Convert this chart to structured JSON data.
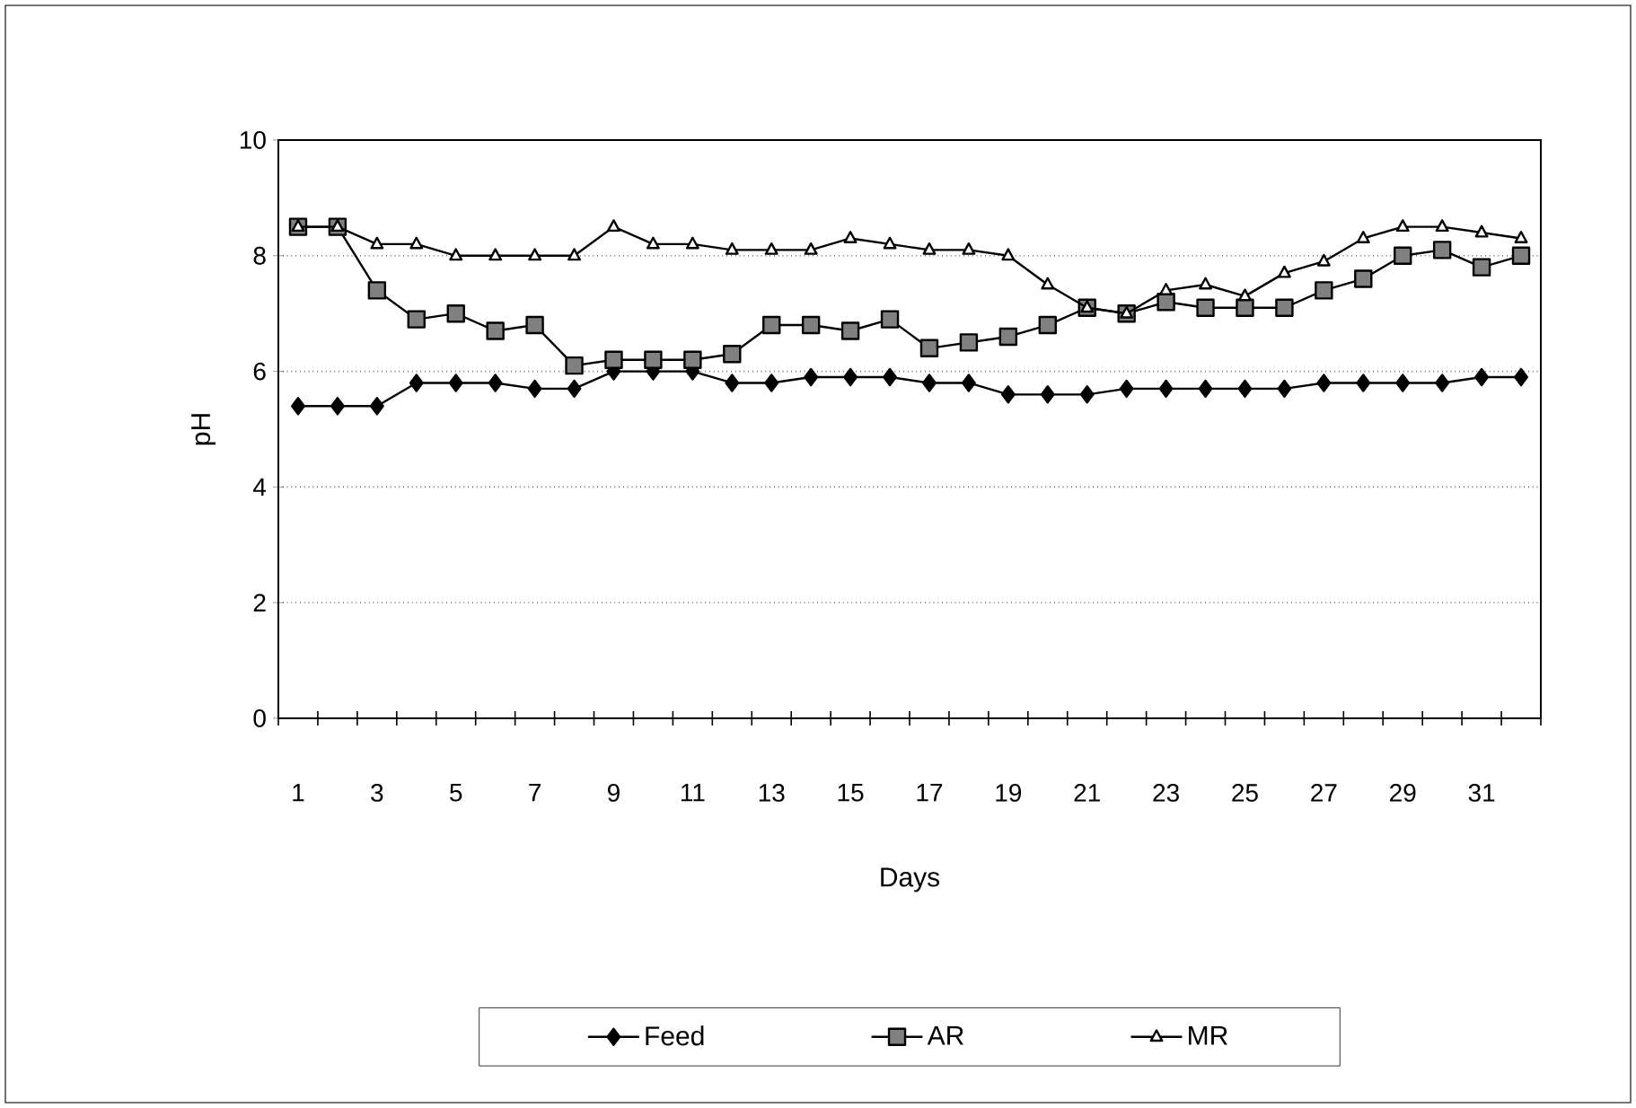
{
  "chart_data": {
    "type": "line",
    "xlabel": "Days",
    "ylabel": "pH",
    "categories": [
      "1",
      null,
      "3",
      null,
      "5",
      null,
      "7",
      null,
      "9",
      null,
      "11",
      null,
      "13",
      null,
      "15",
      null,
      "17",
      null,
      "19",
      null,
      "21",
      null,
      "23",
      null,
      "25",
      null,
      "27",
      null,
      "29",
      null,
      "31",
      null
    ],
    "series": [
      {
        "name": "Feed",
        "color": "#000000",
        "marker": "diamond",
        "values": [
          5.4,
          5.4,
          5.4,
          5.8,
          5.8,
          5.8,
          5.7,
          5.7,
          6.0,
          6.0,
          6.0,
          5.8,
          5.8,
          5.9,
          5.9,
          5.9,
          5.8,
          5.8,
          5.6,
          5.6,
          5.6,
          5.7,
          5.7,
          5.7,
          5.7,
          5.7,
          5.8,
          5.8,
          5.8,
          5.8,
          5.9,
          5.9
        ]
      },
      {
        "name": "AR",
        "color": "#000000",
        "marker": "square",
        "values": [
          8.5,
          8.5,
          7.4,
          6.9,
          7.0,
          6.7,
          6.8,
          6.1,
          6.2,
          6.2,
          6.2,
          6.3,
          6.8,
          6.8,
          6.7,
          6.9,
          6.4,
          6.5,
          6.6,
          6.8,
          7.1,
          7.0,
          7.2,
          7.1,
          7.1,
          7.1,
          7.4,
          7.6,
          8.0,
          8.1,
          7.8,
          8.0
        ]
      },
      {
        "name": "MR",
        "color": "#000000",
        "marker": "triangle",
        "values": [
          8.5,
          8.5,
          8.2,
          8.2,
          8.0,
          8.0,
          8.0,
          8.0,
          8.5,
          8.2,
          8.2,
          8.1,
          8.1,
          8.1,
          8.3,
          8.2,
          8.1,
          8.1,
          8.0,
          7.5,
          7.1,
          7.0,
          7.4,
          7.5,
          7.3,
          7.7,
          7.9,
          8.3,
          8.5,
          8.5,
          8.4,
          8.3
        ]
      }
    ],
    "ylim": [
      0,
      10
    ],
    "yticks": [
      0,
      2,
      4,
      6,
      8,
      10
    ],
    "grid": "y",
    "legend": "bottom",
    "line_style": "solid"
  }
}
